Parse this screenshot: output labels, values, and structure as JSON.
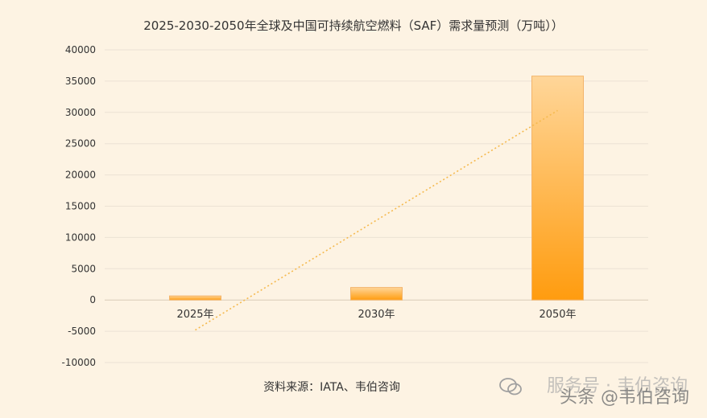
{
  "chart_data": {
    "type": "bar",
    "title": "2025-2030-2050年全球及中国可持续航空燃料（SAF）需求量预测（万吨））",
    "categories": [
      "2025年",
      "2030年",
      "2050年"
    ],
    "values": [
      650,
      2000,
      35800
    ],
    "ylim": [
      -10000,
      40000
    ],
    "yticks": [
      40000,
      35000,
      30000,
      25000,
      20000,
      15000,
      10000,
      5000,
      0,
      -5000,
      -10000
    ],
    "trendline": {
      "style": "dotted",
      "from": -4800,
      "to": 30300
    },
    "xlabel": "",
    "ylabel": "",
    "grid": true,
    "source": "资料来源：IATA、韦伯咨询"
  },
  "watermark": {
    "line1": "服务号 · 韦伯咨询",
    "line2": "头条 @韦伯咨询"
  },
  "colors": {
    "background": "#fdf3e3",
    "bar_top": "#ffd699",
    "bar_bottom": "#ff9c0f",
    "bar_edge": "#f3b46a",
    "trend": "#f5b94e",
    "grid": "#ece2d4",
    "axis": "#d9cbb8",
    "text": "#333333"
  }
}
